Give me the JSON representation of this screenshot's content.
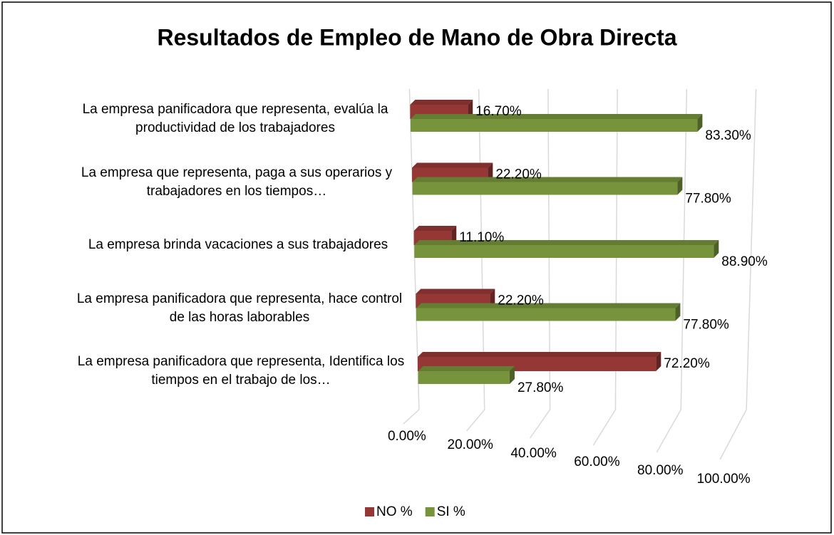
{
  "chart_data": {
    "type": "bar3d",
    "orientation": "horizontal",
    "title": "Resultados de Empleo de Mano de Obra Directa",
    "categories": [
      "La empresa panificadora que representa, evalúa la productividad de los trabajadores",
      "La empresa que representa, paga a sus operarios y trabajadores en los tiempos…",
      "La empresa brinda vacaciones a sus trabajadores",
      "La empresa panificadora que representa, hace control de las horas laborables",
      "La empresa panificadora que representa, Identifica los tiempos en el trabajo de los…"
    ],
    "series": [
      {
        "name": "NO %",
        "color": "#953735",
        "values": [
          16.7,
          22.2,
          11.1,
          22.2,
          72.2
        ],
        "value_labels": [
          "16.70%",
          "22.20%",
          "11.10%",
          "22.20%",
          "72.20%"
        ]
      },
      {
        "name": "SI %",
        "color": "#77933c",
        "values": [
          83.3,
          77.8,
          88.9,
          77.8,
          27.8
        ],
        "value_labels": [
          "83.30%",
          "77.80%",
          "88.90%",
          "77.80%",
          "27.80%"
        ]
      }
    ],
    "xlim": [
      0,
      100
    ],
    "xticks": [
      {
        "value": 0,
        "label": "0.00%"
      },
      {
        "value": 20,
        "label": "20.00%"
      },
      {
        "value": 40,
        "label": "40.00%"
      },
      {
        "value": 60,
        "label": "60.00%"
      },
      {
        "value": 80,
        "label": "80.00%"
      },
      {
        "value": 100,
        "label": "100.00%"
      }
    ],
    "grid": true,
    "legend": "bottom"
  }
}
